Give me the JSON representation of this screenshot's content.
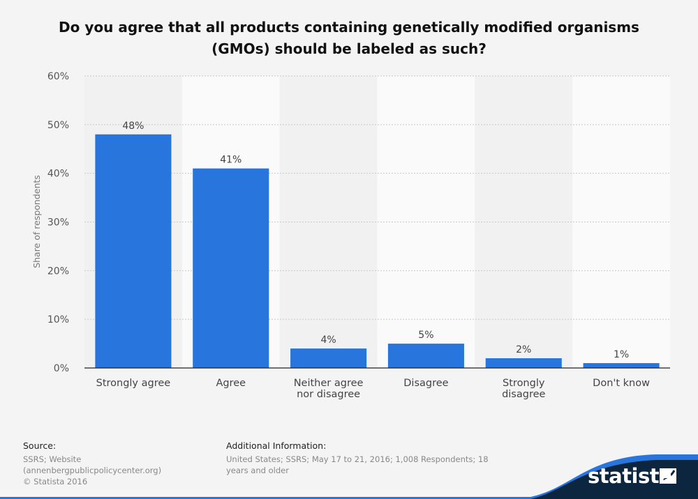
{
  "chart_data": {
    "type": "bar",
    "title": "Do you agree that all products containing genetically modified organisms (GMOs) should be labeled as such?",
    "xlabel": "",
    "ylabel": "Share of respondents",
    "ylim": [
      0,
      60
    ],
    "yticks": [
      0,
      10,
      20,
      30,
      40,
      50,
      60
    ],
    "tick_suffix": "%",
    "categories": [
      "Strongly agree",
      "Agree",
      "Neither agree nor disagree",
      "Disagree",
      "Strongly disagree",
      "Don't know"
    ],
    "category_lines": [
      [
        "Strongly agree"
      ],
      [
        "Agree"
      ],
      [
        "Neither agree",
        "nor disagree"
      ],
      [
        "Disagree"
      ],
      [
        "Strongly",
        "disagree"
      ],
      [
        "Don't know"
      ]
    ],
    "values": [
      48,
      41,
      4,
      5,
      2,
      1
    ],
    "value_labels": [
      "48%",
      "41%",
      "4%",
      "5%",
      "2%",
      "1%"
    ],
    "grid": true,
    "bar_color": "#2876dd"
  },
  "footer": {
    "source_heading": "Source:",
    "source_text": "SSRS; Website (annenbergpublicpolicycenter.org)",
    "copyright": "© Statista 2016",
    "additional_heading": "Additional Information:",
    "additional_text": "United States; SSRS; May 17 to 21, 2016; 1,008 Respondents; 18 years and older"
  },
  "brand": {
    "logo_text": "statista",
    "logo_bg": "#0d2640",
    "accent": "#2876dd"
  }
}
